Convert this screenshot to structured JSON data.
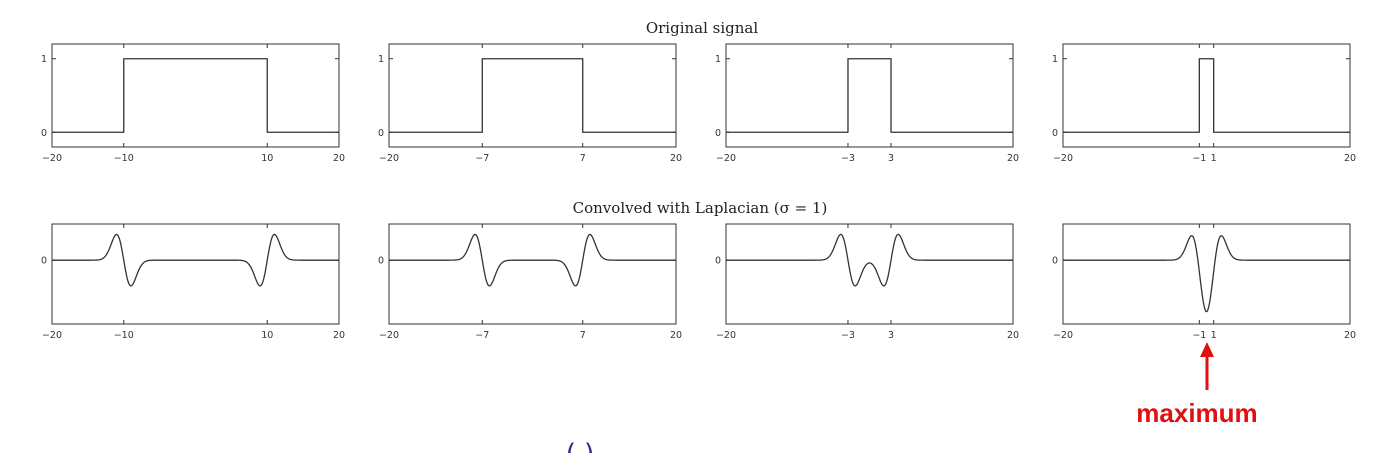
{
  "annotation": {
    "text": "maximum",
    "color": "#e01010",
    "target_panel": "bottom-4"
  },
  "cropped_glyph": {
    "text": "( )",
    "color": "#1f2f8a"
  },
  "chart_data": [
    {
      "title": "Original signal",
      "type": "line",
      "xlim": [
        -20,
        20
      ],
      "panels": [
        {
          "id": "top-1",
          "signal": "rect",
          "half_width": 10,
          "xticks": [
            -20,
            -10,
            10,
            20
          ],
          "yticks": [
            0,
            1
          ],
          "ylim": [
            -0.2,
            1.2
          ]
        },
        {
          "id": "top-2",
          "signal": "rect",
          "half_width": 7,
          "xticks": [
            -20,
            -7,
            7,
            20
          ],
          "yticks": [
            0,
            1
          ],
          "ylim": [
            -0.2,
            1.2
          ]
        },
        {
          "id": "top-3",
          "signal": "rect",
          "half_width": 3,
          "xticks": [
            -20,
            -3,
            3,
            20
          ],
          "yticks": [
            0,
            1
          ],
          "ylim": [
            -0.2,
            1.2
          ]
        },
        {
          "id": "top-4",
          "signal": "rect",
          "half_width": 1,
          "xticks": [
            -20,
            -1,
            1,
            20
          ],
          "yticks": [
            0,
            1
          ],
          "ylim": [
            -0.2,
            1.2
          ]
        }
      ]
    },
    {
      "title": "Convolved with Laplacian (σ = 1)",
      "type": "line",
      "xlim": [
        -20,
        20
      ],
      "sigma": 1,
      "panels": [
        {
          "id": "bottom-1",
          "signal": "laplacian_response",
          "half_width": 10,
          "xticks": [
            -20,
            -10,
            10,
            20
          ],
          "yticks": [
            0
          ],
          "ylim": [
            -0.6,
            0.34
          ]
        },
        {
          "id": "bottom-2",
          "signal": "laplacian_response",
          "half_width": 7,
          "xticks": [
            -20,
            -7,
            7,
            20
          ],
          "yticks": [
            0
          ],
          "ylim": [
            -0.6,
            0.34
          ]
        },
        {
          "id": "bottom-3",
          "signal": "laplacian_response",
          "half_width": 3,
          "xticks": [
            -20,
            -3,
            3,
            20
          ],
          "yticks": [
            0
          ],
          "ylim": [
            -0.6,
            0.34
          ]
        },
        {
          "id": "bottom-4",
          "signal": "laplacian_response",
          "half_width": 1,
          "xticks": [
            -20,
            -1,
            1,
            20
          ],
          "yticks": [
            0
          ],
          "ylim": [
            -0.6,
            0.34
          ]
        }
      ]
    }
  ]
}
